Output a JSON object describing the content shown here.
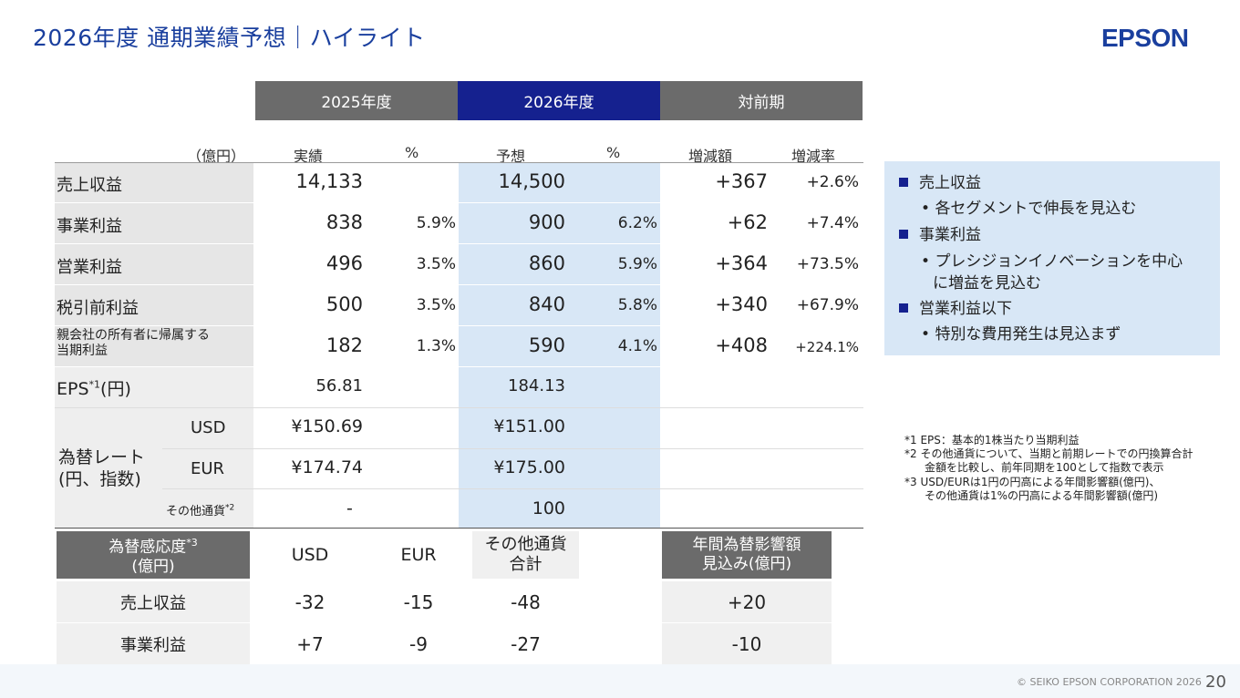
{
  "page": {
    "title": "2026年度 通期業績予想｜ハイライト",
    "logo": "EPSON",
    "copyright": "© SEIKO EPSON CORPORATION 2026",
    "page_number": "20"
  },
  "table": {
    "group_headers": [
      "2025年度",
      "2026年度",
      "対前期"
    ],
    "col_headers": {
      "unit": "（億円）",
      "actual": "実績",
      "pct1": "%",
      "forecast": "予想",
      "pct2": "%",
      "change_amount": "増減額",
      "change_rate": "増減率"
    },
    "rows": [
      {
        "label": "売上収益",
        "actual": "14,133",
        "pct1": "",
        "forecast": "14,500",
        "pct2": "",
        "change": "+367",
        "rate": "+2.6%"
      },
      {
        "label": "事業利益",
        "actual": "838",
        "pct1": "5.9%",
        "forecast": "900",
        "pct2": "6.2%",
        "change": "+62",
        "rate": "+7.4%"
      },
      {
        "label": "営業利益",
        "actual": "496",
        "pct1": "3.5%",
        "forecast": "860",
        "pct2": "5.9%",
        "change": "+364",
        "rate": "+73.5%"
      },
      {
        "label": "税引前利益",
        "actual": "500",
        "pct1": "3.5%",
        "forecast": "840",
        "pct2": "5.8%",
        "change": "+340",
        "rate": "+67.9%"
      },
      {
        "label_line1": "親会社の所有者に帰属する",
        "label_line2": "当期利益",
        "actual": "182",
        "pct1": "1.3%",
        "forecast": "590",
        "pct2": "4.1%",
        "change": "+408",
        "rate": "+224.1%"
      }
    ],
    "eps": {
      "label": "EPS",
      "sup": "*1",
      "suffix": "(円)",
      "actual": "56.81",
      "forecast": "184.13"
    },
    "fx": {
      "label_line1": "為替レート",
      "label_line2": "(円、指数)",
      "rows": [
        {
          "currency": "USD",
          "actual": "¥150.69",
          "forecast": "¥151.00"
        },
        {
          "currency": "EUR",
          "actual": "¥174.74",
          "forecast": "¥175.00"
        },
        {
          "currency": "その他通貨",
          "sup": "*2",
          "actual": "-",
          "forecast": "100"
        }
      ]
    }
  },
  "highlights": [
    {
      "head": "売上収益",
      "items": [
        "各セグメントで伸長を見込む"
      ]
    },
    {
      "head": "事業利益",
      "items": [
        "プレシジョンイノベーションを中心",
        "に増益を見込む"
      ]
    },
    {
      "head": "営業利益以下",
      "items": [
        "特別な費用発生は見込まず"
      ]
    }
  ],
  "notes": [
    "*1 EPS：基本的1株当たり当期利益",
    "*2 その他通貨について、当期と前期レートでの円換算合計",
    "金額を比較し、前年同期を100として指数で表示",
    "*3 USD/EURは1円の円高による年間影響額(億円)、",
    "その他通貨は1%の円高による年間影響額(億円)"
  ],
  "sensitivity": {
    "header_line1": "為替感応度",
    "header_sup": "*3",
    "header_line2": "(億円)",
    "cols": [
      "USD",
      "EUR"
    ],
    "other_line1": "その他通貨",
    "other_line2": "合計",
    "annual_line1": "年間為替影響額",
    "annual_line2": "見込み(億円)",
    "rows": [
      {
        "label": "売上収益",
        "usd": "-32",
        "eur": "-15",
        "other": "-48",
        "annual": "+20"
      },
      {
        "label": "事業利益",
        "usd": "+7",
        "eur": "-9",
        "other": "-27",
        "annual": "-10"
      }
    ]
  }
}
